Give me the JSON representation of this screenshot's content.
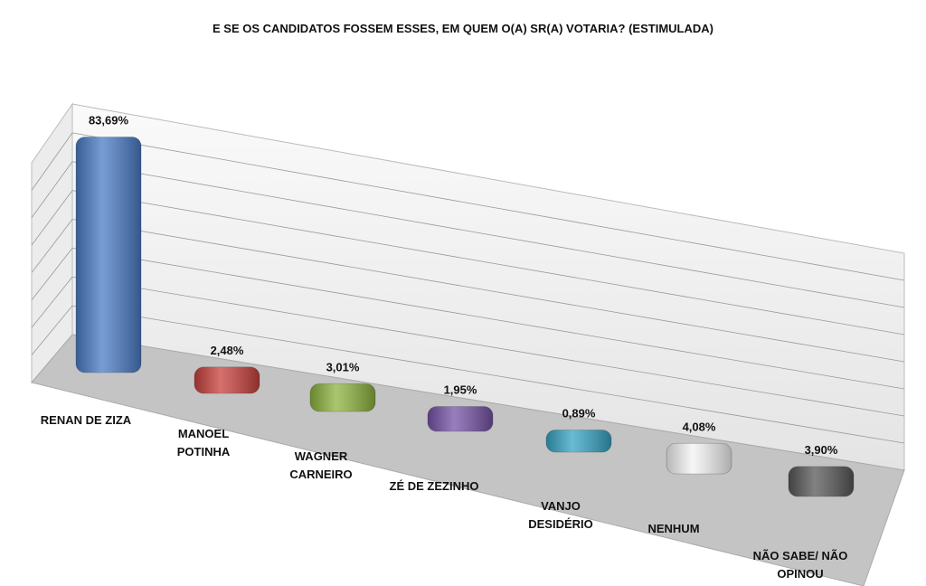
{
  "chart_data": {
    "type": "bar3d",
    "title": "E SE OS CANDIDATOS FOSSEM ESSES, EM QUEM O(A) SR(A) VOTARIA? (ESTIMULADA)",
    "categories": [
      "RENAN DE ZIZA",
      "MANOEL POTINHA",
      "WAGNER CARNEIRO",
      "ZÉ DE ZEZINHO",
      "VANJO DESIDÉRIO",
      "NENHUM",
      "NÃO SABE/ NÃO OPINOU"
    ],
    "values": [
      83.69,
      2.48,
      3.01,
      1.95,
      0.89,
      4.08,
      3.9
    ],
    "value_labels": [
      "83,69%",
      "2,48%",
      "3,01%",
      "1,95%",
      "0,89%",
      "4,08%",
      "3,90%"
    ],
    "colors": [
      "#4a7cc6",
      "#c9413d",
      "#8db43f",
      "#7653a6",
      "#35a4c4",
      "#f4f4f4",
      "#585858"
    ]
  }
}
